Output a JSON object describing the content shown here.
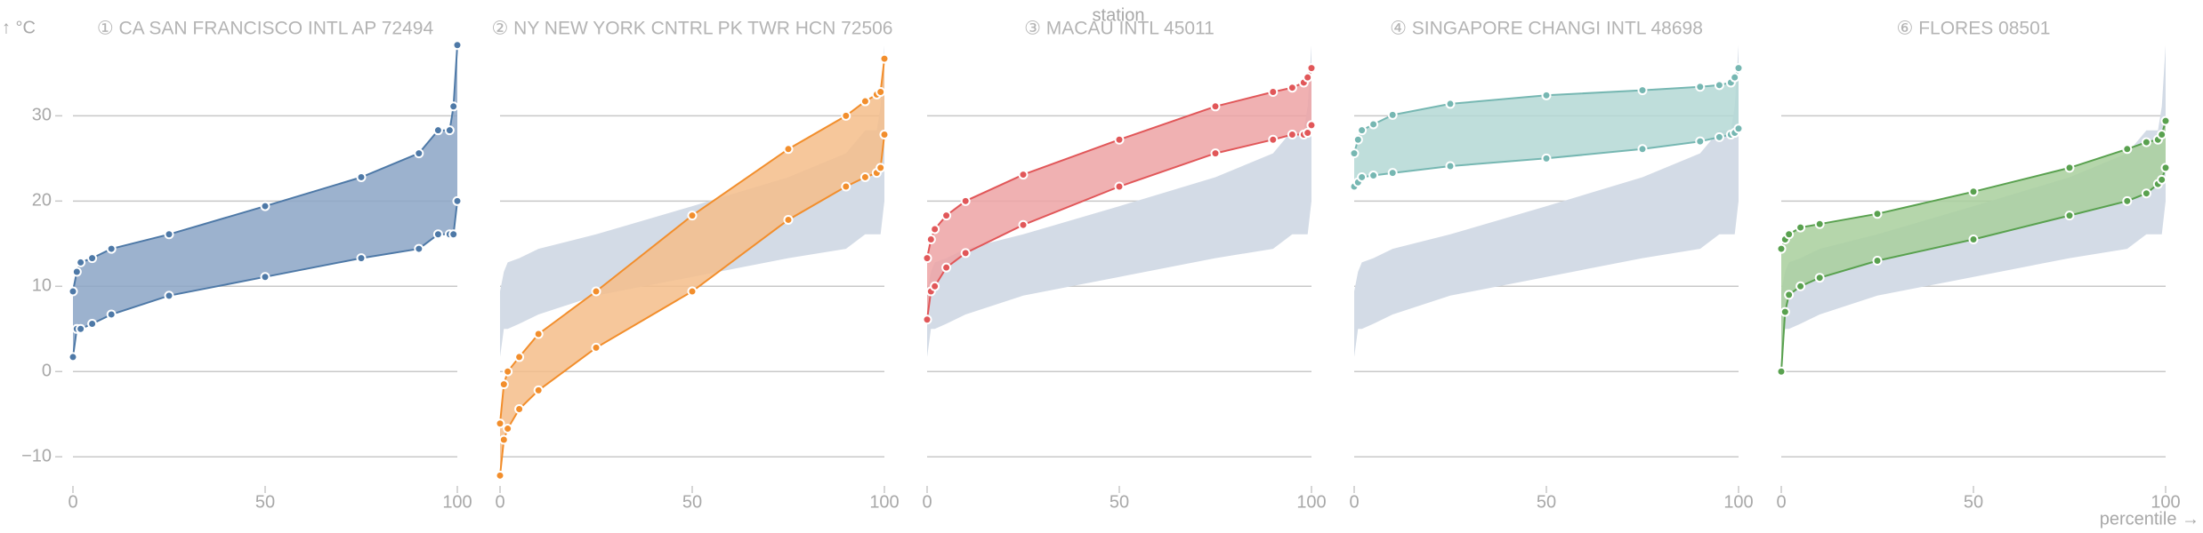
{
  "chart_data": {
    "type": "area",
    "facet_label": "station",
    "y_axis_label": "↑ °C",
    "x_axis_label": "percentile →",
    "x_ticks": [
      0,
      50,
      100
    ],
    "y_ticks": [
      -10,
      0,
      10,
      20,
      30
    ],
    "xlim": [
      0,
      100
    ],
    "ylim": [
      -13,
      39
    ],
    "grid": "horizontal",
    "percentiles": [
      0,
      1,
      2,
      5,
      10,
      25,
      50,
      75,
      90,
      95,
      98,
      99,
      100
    ],
    "stations": [
      {
        "title": "① CA SAN FRANCISCO INTL AP 72494",
        "color": "#4e79a7",
        "fill": "#8ba5c6",
        "low": [
          1.7,
          5.0,
          5.0,
          5.6,
          6.7,
          8.9,
          11.1,
          13.3,
          14.4,
          16.1,
          16.1,
          16.1,
          20.0
        ],
        "high": [
          9.4,
          11.7,
          12.8,
          13.3,
          14.4,
          16.1,
          19.4,
          22.8,
          25.6,
          28.3,
          28.3,
          31.1,
          38.3
        ]
      },
      {
        "title": "② NY NEW YORK CNTRL PK TWR HCN 72506",
        "color": "#f28e2c",
        "fill": "#f5bd8a",
        "low": [
          -12.2,
          -8.0,
          -6.7,
          -4.4,
          -2.2,
          2.8,
          9.4,
          17.8,
          21.7,
          22.8,
          23.3,
          23.9,
          27.8
        ],
        "high": [
          -6.1,
          -1.5,
          0.0,
          1.7,
          4.4,
          9.4,
          18.3,
          26.1,
          30.0,
          31.7,
          32.5,
          32.8,
          36.7
        ]
      },
      {
        "title": "③ MACAU INTL 45011",
        "color": "#e15759",
        "fill": "#eda3a4",
        "low": [
          6.1,
          9.4,
          10.0,
          12.2,
          13.9,
          17.2,
          21.7,
          25.6,
          27.2,
          27.8,
          27.8,
          28.0,
          28.9
        ],
        "high": [
          13.3,
          15.5,
          16.7,
          18.3,
          20.0,
          23.1,
          27.2,
          31.1,
          32.8,
          33.3,
          33.9,
          34.5,
          35.6
        ]
      },
      {
        "title": "④ SINGAPORE CHANGI INTL 48698",
        "color": "#76b7b2",
        "fill": "#b4d8d5",
        "low": [
          21.7,
          22.2,
          22.8,
          23.0,
          23.3,
          24.1,
          25.0,
          26.1,
          27.0,
          27.5,
          27.8,
          28.0,
          28.5
        ],
        "high": [
          25.6,
          27.2,
          28.3,
          29.0,
          30.1,
          31.4,
          32.4,
          33.0,
          33.4,
          33.6,
          33.9,
          34.5,
          35.6
        ]
      },
      {
        "title": "⑥ FLORES 08501",
        "color": "#59a14f",
        "fill": "#a8cf9c",
        "low": [
          0.0,
          7.0,
          9.0,
          10.0,
          11.0,
          13.0,
          15.5,
          18.3,
          20.0,
          20.9,
          22.0,
          22.5,
          23.9
        ],
        "high": [
          14.4,
          15.5,
          16.1,
          16.9,
          17.3,
          18.5,
          21.1,
          23.9,
          26.1,
          26.9,
          27.2,
          27.8,
          29.4
        ]
      }
    ]
  }
}
